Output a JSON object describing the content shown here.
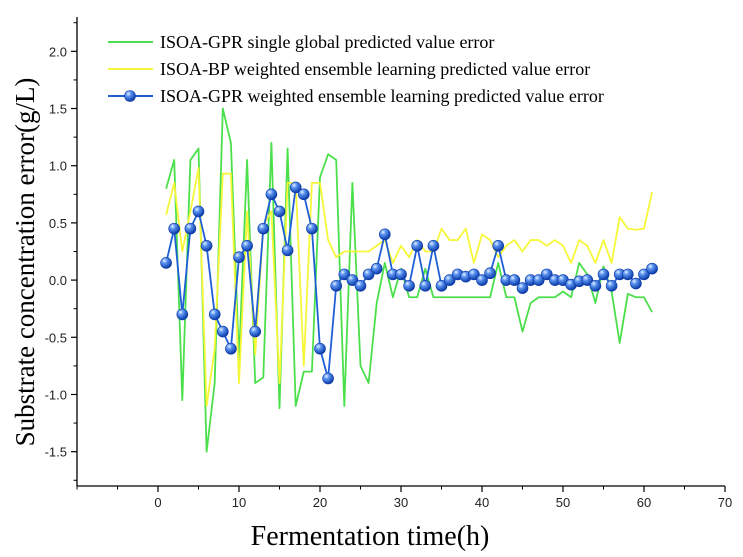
{
  "chart_data": {
    "type": "line",
    "title": "",
    "xlabel": "Fermentation time(h)",
    "ylabel": "Substrate concentration error(g/L)",
    "xlim": [
      -10,
      70
    ],
    "ylim": [
      -1.8,
      2.3
    ],
    "xticks": [
      0,
      10,
      20,
      30,
      40,
      50,
      60,
      70
    ],
    "yticks": [
      -1.5,
      -1.0,
      -0.5,
      0.0,
      0.5,
      1.0,
      1.5,
      2.0
    ],
    "xtick_labels": [
      "0",
      "10",
      "20",
      "30",
      "40",
      "50",
      "60",
      "70"
    ],
    "ytick_labels": [
      "-1.5",
      "-1.0",
      "-0.5",
      "0.0",
      "0.5",
      "1.0",
      "1.5",
      "2.0"
    ],
    "grid": false,
    "legend_position": "top-left",
    "series": [
      {
        "name": "ISOA-GPR single global predicted value error",
        "color": "#4be04b",
        "marker": "none",
        "x": [
          1,
          2,
          3,
          4,
          5,
          6,
          7,
          8,
          9,
          10,
          11,
          12,
          13,
          14,
          15,
          16,
          17,
          18,
          19,
          20,
          21,
          22,
          23,
          24,
          25,
          26,
          27,
          28,
          29,
          30,
          31,
          32,
          33,
          34,
          35,
          36,
          37,
          38,
          39,
          40,
          41,
          42,
          43,
          44,
          45,
          46,
          47,
          48,
          49,
          50,
          51,
          52,
          53,
          54,
          55,
          56,
          57,
          58,
          59,
          60,
          61
        ],
        "values": [
          0.8,
          1.05,
          -1.05,
          1.05,
          1.15,
          -1.5,
          -0.9,
          1.5,
          1.2,
          -0.7,
          1.05,
          -0.9,
          -0.85,
          1.2,
          -1.12,
          1.15,
          -1.1,
          -0.8,
          -0.8,
          0.9,
          1.1,
          1.05,
          -1.1,
          0.85,
          -0.75,
          -0.9,
          -0.2,
          0.15,
          -0.15,
          0.1,
          -0.15,
          -0.15,
          0.1,
          -0.15,
          -0.15,
          -0.15,
          -0.15,
          -0.15,
          -0.15,
          -0.15,
          -0.15,
          0.15,
          -0.15,
          -0.15,
          -0.45,
          -0.2,
          -0.15,
          -0.15,
          -0.15,
          -0.1,
          -0.15,
          0.15,
          0.05,
          -0.2,
          0.12,
          -0.1,
          -0.55,
          -0.12,
          -0.15,
          -0.15,
          -0.28
        ]
      },
      {
        "name": "ISOA-BP weighted ensemble learning predicted value error",
        "color": "#f7f73a",
        "marker": "none",
        "x": [
          1,
          2,
          3,
          4,
          5,
          6,
          7,
          8,
          9,
          10,
          11,
          12,
          13,
          14,
          15,
          16,
          17,
          18,
          19,
          20,
          21,
          22,
          23,
          24,
          25,
          26,
          27,
          28,
          29,
          30,
          31,
          32,
          33,
          34,
          35,
          36,
          37,
          38,
          39,
          40,
          41,
          42,
          43,
          44,
          45,
          46,
          47,
          48,
          49,
          50,
          51,
          52,
          53,
          54,
          55,
          56,
          57,
          58,
          59,
          60,
          61
        ],
        "values": [
          0.57,
          0.85,
          0.25,
          0.6,
          0.98,
          -1.1,
          -0.6,
          0.93,
          0.93,
          -0.9,
          0.6,
          -0.65,
          0.48,
          0.6,
          -0.9,
          0.85,
          0.85,
          -0.75,
          0.85,
          0.85,
          0.35,
          0.2,
          0.25,
          0.25,
          0.25,
          0.25,
          0.3,
          0.35,
          0.15,
          0.3,
          0.2,
          0.35,
          0.25,
          0.25,
          0.45,
          0.35,
          0.35,
          0.45,
          0.15,
          0.4,
          0.35,
          0.2,
          0.3,
          0.35,
          0.25,
          0.35,
          0.35,
          0.3,
          0.35,
          0.3,
          0.15,
          0.35,
          0.3,
          0.15,
          0.35,
          0.15,
          0.55,
          0.45,
          0.44,
          0.45,
          0.77
        ]
      },
      {
        "name": "ISOA-GPR weighted ensemble learning predicted value error",
        "color": "#1f5fd6",
        "marker": "sphere",
        "x": [
          1,
          2,
          3,
          4,
          5,
          6,
          7,
          8,
          9,
          10,
          11,
          12,
          13,
          14,
          15,
          16,
          17,
          18,
          19,
          20,
          21,
          22,
          23,
          24,
          25,
          26,
          27,
          28,
          29,
          30,
          31,
          32,
          33,
          34,
          35,
          36,
          37,
          38,
          39,
          40,
          41,
          42,
          43,
          44,
          45,
          46,
          47,
          48,
          49,
          50,
          51,
          52,
          53,
          54,
          55,
          56,
          57,
          58,
          59,
          60,
          61
        ],
        "values": [
          0.15,
          0.45,
          -0.3,
          0.45,
          0.6,
          0.3,
          -0.3,
          -0.45,
          -0.6,
          0.2,
          0.3,
          -0.45,
          0.45,
          0.75,
          0.6,
          0.26,
          0.81,
          0.75,
          0.45,
          -0.6,
          -0.86,
          -0.05,
          0.05,
          0.0,
          -0.05,
          0.05,
          0.1,
          0.4,
          0.05,
          0.05,
          -0.05,
          0.3,
          -0.05,
          0.3,
          -0.05,
          0.0,
          0.05,
          0.03,
          0.05,
          0.0,
          0.06,
          0.3,
          0.0,
          0.0,
          -0.07,
          0.0,
          0.0,
          0.05,
          0.0,
          0.0,
          -0.04,
          -0.01,
          0.0,
          -0.05,
          0.05,
          -0.05,
          0.05,
          0.05,
          -0.03,
          0.05,
          0.1
        ]
      }
    ]
  }
}
